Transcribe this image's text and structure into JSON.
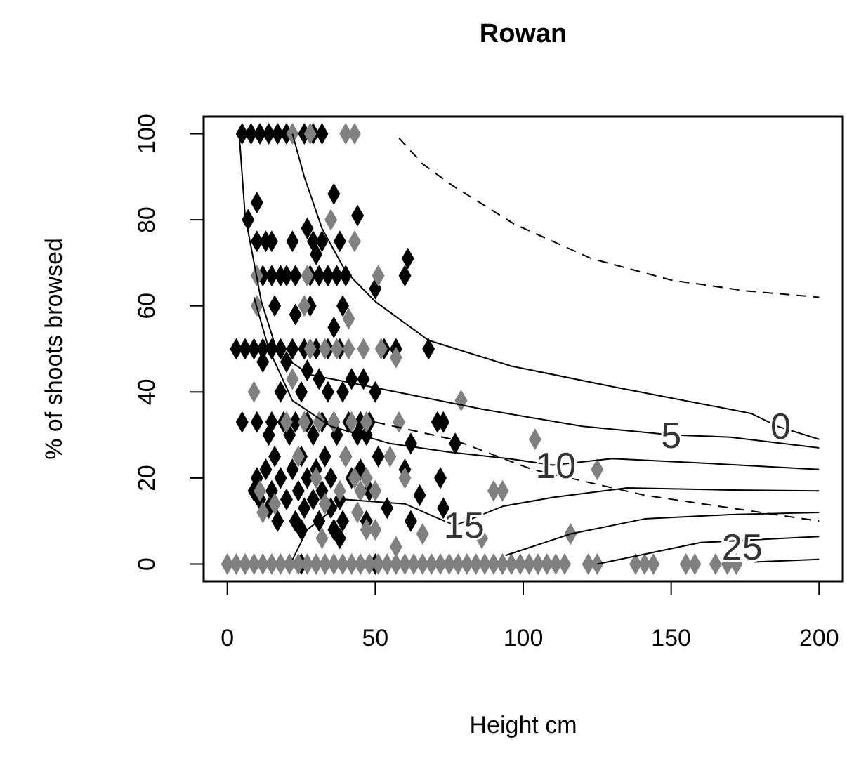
{
  "chart_data": {
    "type": "scatter",
    "title": "Rowan",
    "xlabel": "Height cm",
    "ylabel": "% of shoots browsed",
    "xlim": [
      -8,
      208
    ],
    "ylim": [
      -4,
      104
    ],
    "xticks": [
      0,
      50,
      100,
      150,
      200
    ],
    "yticks": [
      0,
      20,
      40,
      60,
      80,
      100
    ],
    "marker": "diamond",
    "series": [
      {
        "color": "#000000",
        "x": [
          5,
          8,
          11,
          14,
          17,
          20,
          26,
          29,
          32,
          10,
          36,
          44,
          7,
          10,
          13,
          15,
          22,
          29,
          32,
          38,
          27,
          30,
          61,
          12,
          15,
          18,
          20,
          23,
          28,
          31,
          34,
          37,
          40,
          60,
          50,
          16,
          28,
          39,
          23,
          36,
          68,
          3,
          6,
          9,
          12,
          15,
          18,
          22,
          26,
          30,
          34,
          38,
          53,
          57,
          12,
          20,
          27,
          31,
          42,
          46,
          18,
          25,
          34,
          39,
          50,
          5,
          10,
          15,
          19,
          23,
          27,
          32,
          36,
          41,
          45,
          48,
          71,
          73,
          14,
          21,
          29,
          37,
          44,
          47,
          62,
          77,
          16,
          25,
          33,
          40,
          51,
          13,
          22,
          30,
          45,
          60,
          10,
          18,
          27,
          35,
          42,
          72,
          9,
          15,
          24,
          32,
          48,
          11,
          20,
          29,
          38,
          65,
          14,
          26,
          35,
          54,
          73,
          17,
          23,
          31,
          39,
          47,
          62,
          25,
          36,
          38,
          25,
          50
        ],
        "values": [
          100,
          100,
          100,
          100,
          100,
          100,
          100,
          100,
          100,
          84,
          86,
          81,
          80,
          75,
          75,
          75,
          75,
          75,
          75,
          75,
          78,
          72,
          71,
          67,
          67,
          67,
          67,
          67,
          67,
          67,
          67,
          67,
          67,
          67,
          64,
          60,
          60,
          60,
          58,
          55,
          50,
          50,
          50,
          50,
          50,
          50,
          50,
          50,
          50,
          50,
          50,
          50,
          50,
          50,
          47,
          47,
          45,
          43,
          43,
          43,
          40,
          40,
          40,
          40,
          40,
          33,
          33,
          33,
          33,
          33,
          33,
          33,
          33,
          33,
          33,
          33,
          33,
          33,
          30,
          30,
          30,
          30,
          30,
          30,
          28,
          28,
          25,
          25,
          25,
          25,
          25,
          22,
          22,
          22,
          22,
          22,
          20,
          20,
          20,
          20,
          20,
          20,
          17,
          17,
          17,
          17,
          17,
          15,
          15,
          15,
          15,
          16,
          13,
          13,
          13,
          13,
          13,
          10,
          10,
          10,
          10,
          10,
          10,
          8,
          8,
          6,
          0,
          0
        ]
      },
      {
        "color": "#808080",
        "x": [
          0,
          3,
          6,
          9,
          12,
          15,
          18,
          21,
          24,
          27,
          30,
          33,
          36,
          39,
          42,
          45,
          48,
          51,
          54,
          57,
          60,
          63,
          66,
          69,
          72,
          75,
          78,
          81,
          84,
          87,
          90,
          93,
          96,
          99,
          102,
          105,
          108,
          111,
          114,
          122,
          125,
          138,
          141,
          144,
          155,
          158,
          165,
          169,
          172,
          22,
          28,
          40,
          43,
          35,
          43,
          10,
          27,
          51,
          10,
          26,
          41,
          28,
          33,
          37,
          41,
          46,
          52,
          57,
          22,
          9,
          79,
          20,
          26,
          31,
          36,
          42,
          47,
          58,
          104,
          24,
          40,
          55,
          125,
          30,
          43,
          47,
          60,
          11,
          38,
          45,
          50,
          90,
          93,
          16,
          33,
          12,
          44,
          47,
          50,
          66,
          32,
          86,
          57,
          116
        ],
        "values": [
          0,
          0,
          0,
          0,
          0,
          0,
          0,
          0,
          0,
          0,
          0,
          0,
          0,
          0,
          0,
          0,
          0,
          0,
          0,
          0,
          0,
          0,
          0,
          0,
          0,
          0,
          0,
          0,
          0,
          0,
          0,
          0,
          0,
          0,
          0,
          0,
          0,
          0,
          0,
          0,
          0,
          0,
          0,
          0,
          0,
          0,
          0,
          0,
          0,
          100,
          100,
          100,
          100,
          80,
          75,
          67,
          67,
          67,
          60,
          60,
          57,
          50,
          50,
          50,
          50,
          50,
          50,
          48,
          43,
          40,
          38,
          33,
          33,
          33,
          33,
          33,
          33,
          33,
          29,
          25,
          25,
          25,
          22,
          20,
          20,
          20,
          20,
          17,
          17,
          17,
          17,
          17,
          17,
          14,
          14,
          12,
          12,
          8,
          8,
          7,
          6,
          6,
          4,
          7
        ]
      },
      {
        "type": "line",
        "marker": "none",
        "line_style": "dashed",
        "color": "#000000",
        "x": [
          58,
          66,
          76,
          97,
          123,
          150,
          175,
          200
        ],
        "values": [
          99,
          93,
          88,
          79,
          71,
          66,
          63.5,
          62
        ]
      },
      {
        "type": "line",
        "marker": "none",
        "color": "#000000",
        "x": [
          22,
          26,
          32,
          40,
          50,
          68,
          96,
          132,
          177,
          186,
          200
        ],
        "values": [
          100,
          90,
          78,
          68,
          61,
          52,
          46,
          41,
          35,
          32,
          29
        ]
      },
      {
        "type": "line",
        "marker": "none",
        "color": "#000000",
        "x": [
          4,
          6,
          11.5,
          17,
          28,
          50,
          86,
          120,
          150,
          170,
          200
        ],
        "values": [
          100,
          81,
          61,
          49,
          44,
          41,
          36,
          32,
          30,
          29.5,
          27
        ]
      },
      {
        "type": "line",
        "marker": "none",
        "color": "#000000",
        "x": [
          9,
          14,
          22,
          35,
          55,
          75,
          95,
          110,
          130,
          160,
          200
        ],
        "values": [
          62,
          50,
          38,
          32,
          28,
          26,
          24.5,
          23,
          24.5,
          23.5,
          22
        ]
      },
      {
        "type": "line",
        "marker": "none",
        "line_style": "dashed",
        "color": "#000000",
        "x": [
          50,
          76,
          103,
          141,
          200
        ],
        "values": [
          33,
          29,
          22,
          16,
          10
        ]
      },
      {
        "type": "line",
        "marker": "none",
        "color": "#000000",
        "x": [
          22,
          27,
          40,
          60,
          70,
          77,
          93,
          110,
          135,
          170,
          200
        ],
        "values": [
          1,
          8,
          15,
          14,
          11,
          9,
          13.4,
          15.5,
          17.7,
          17.2,
          17
        ]
      },
      {
        "type": "line",
        "marker": "none",
        "color": "#000000",
        "x": [
          94,
          116,
          141,
          170,
          200
        ],
        "values": [
          2,
          7,
          10.5,
          11.5,
          12
        ]
      },
      {
        "type": "line",
        "marker": "none",
        "color": "#000000",
        "x": [
          125,
          160,
          174,
          200
        ],
        "values": [
          0,
          5,
          5.5,
          6.4
        ]
      },
      {
        "type": "line",
        "marker": "none",
        "color": "#000000",
        "x": [
          178,
          200
        ],
        "values": [
          0.5,
          1.1
        ]
      }
    ],
    "annotations": [
      {
        "text": "0",
        "x": 187,
        "y": 32
      },
      {
        "text": "5",
        "x": 150,
        "y": 30
      },
      {
        "text": "10",
        "x": 111,
        "y": 23
      },
      {
        "text": "15",
        "x": 80,
        "y": 9
      },
      {
        "text": "25",
        "x": 174,
        "y": 4
      }
    ]
  }
}
